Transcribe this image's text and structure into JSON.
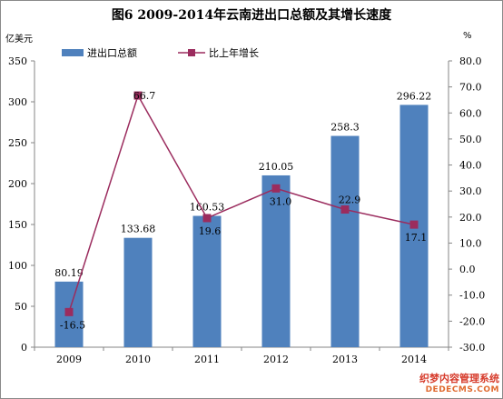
{
  "chart_data": {
    "type": "bar",
    "title": "图6    2009-2014年云南进出口总额及其增长速度",
    "left_axis_unit": "亿美元",
    "right_axis_unit": "%",
    "categories": [
      "2009",
      "2010",
      "2011",
      "2012",
      "2013",
      "2014"
    ],
    "series": [
      {
        "name": "进出口总额",
        "type": "bar",
        "axis": "left",
        "color": "#4f81bd",
        "values": [
          80.19,
          133.68,
          160.53,
          210.05,
          258.3,
          296.22
        ],
        "labels": [
          "80.19",
          "133.68",
          "160.53",
          "210.05",
          "258.3",
          "296.22"
        ]
      },
      {
        "name": "比上年增长",
        "type": "line",
        "axis": "right",
        "color": "#9b2c5e",
        "values": [
          -16.5,
          66.7,
          19.6,
          31.0,
          22.9,
          17.1
        ],
        "labels": [
          "-16.5",
          "66.7",
          "19.6",
          "31.0",
          "22.9",
          "17.1"
        ]
      }
    ],
    "y_left": {
      "min": 0,
      "max": 350,
      "step": 50,
      "ticks": [
        "0",
        "50",
        "100",
        "150",
        "200",
        "250",
        "300",
        "350"
      ]
    },
    "y_right": {
      "min": -30,
      "max": 80,
      "step": 10,
      "ticks": [
        "-30.0",
        "-20.0",
        "-10.0",
        "0.0",
        "10.0",
        "20.0",
        "30.0",
        "40.0",
        "50.0",
        "60.0",
        "70.0",
        "80.0"
      ]
    },
    "grid": false,
    "legend_position": "top-left"
  },
  "watermark": {
    "line1": "织梦内容管理系统",
    "line2": "DEDECMS.COM"
  }
}
